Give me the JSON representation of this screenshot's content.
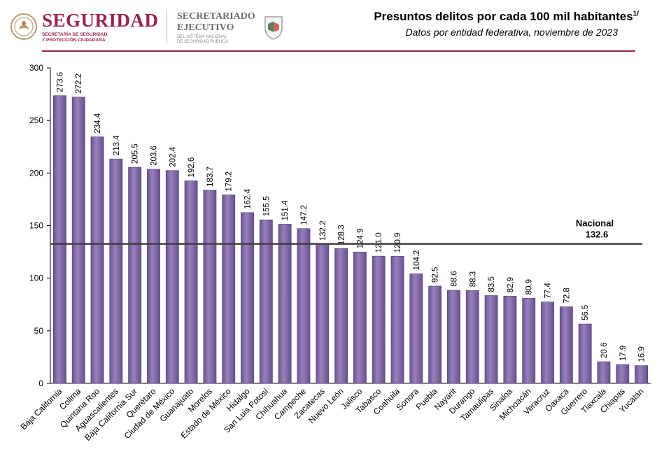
{
  "header": {
    "org_main": "SEGURIDAD",
    "org_sub_1": "SECRETARÍA DE SEGURIDAD",
    "org_sub_2": "Y PROTECCIÓN CIUDADANA",
    "sesnsp_line1": "SECRETARIADO",
    "sesnsp_line2": "EJECUTIVO",
    "sesnsp_sub_1": "DEL SISTEMA NACIONAL",
    "sesnsp_sub_2": "DE SEGURIDAD PÚBLICA"
  },
  "colors": {
    "bar": "#8064a2",
    "bar_dark": "#5a4478",
    "brand": "#9b2247",
    "reference_line": "#404040"
  },
  "chart_data": {
    "type": "bar",
    "title": "Presuntos delitos por cada 100 mil habitantes",
    "title_footnote": "1/",
    "subtitle": "Datos por entidad federativa, noviembre de 2023",
    "xlabel": "",
    "ylabel": "",
    "ylim": [
      0,
      300
    ],
    "yticks": [
      0,
      50,
      100,
      150,
      200,
      250,
      300
    ],
    "grid": false,
    "categories": [
      "Baja California",
      "Colima",
      "Quintana Roo",
      "Aguascalientes",
      "Baja California Sur",
      "Querétaro",
      "Ciudad de México",
      "Guanajuato",
      "Morelos",
      "Estado de México",
      "Hidalgo",
      "San Luis Potosí",
      "Chihuahua",
      "Campeche",
      "Zacatecas",
      "Nuevo León",
      "Jalisco",
      "Tabasco",
      "Coahuila",
      "Sonora",
      "Puebla",
      "Nayarit",
      "Durango",
      "Tamaulipas",
      "Sinaloa",
      "Michoacán",
      "Veracruz",
      "Oaxaca",
      "Guerrero",
      "Tlaxcala",
      "Chiapas",
      "Yucatán"
    ],
    "values": [
      273.6,
      272.2,
      234.4,
      213.4,
      205.5,
      203.6,
      202.4,
      192.6,
      183.7,
      179.2,
      162.4,
      155.5,
      151.4,
      147.2,
      132.2,
      128.3,
      124.9,
      121.0,
      120.9,
      104.2,
      92.5,
      88.6,
      88.3,
      83.5,
      82.9,
      80.9,
      77.4,
      72.8,
      56.5,
      20.6,
      17.9,
      16.9
    ],
    "value_labels": [
      "273.6",
      "272.2",
      "234.4",
      "213.4",
      "205.5",
      "203.6",
      "202.4",
      "192.6",
      "183.7",
      "179.2",
      "162.4",
      "155.5",
      "151.4",
      "147.2",
      "132.2",
      "128.3",
      "124.9",
      "121.0",
      "120.9",
      "104.2",
      "92.5",
      "88.6",
      "88.3",
      "83.5",
      "82.9",
      "80.9",
      "77.4",
      "72.8",
      "56.5",
      "20.6",
      "17.9",
      "16.9"
    ],
    "reference": {
      "label": "Nacional",
      "value": 132.6,
      "value_label": "132.6"
    }
  }
}
